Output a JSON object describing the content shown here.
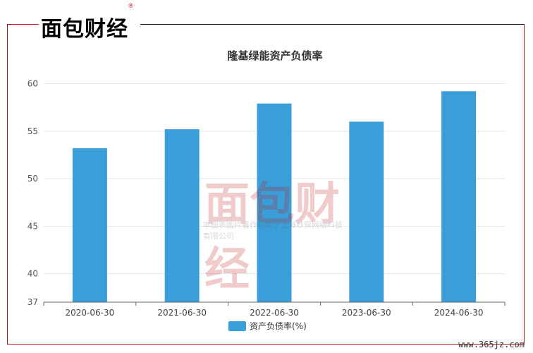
{
  "brand": {
    "logo_text": "面包财经",
    "registered": "®"
  },
  "watermark": {
    "logo_text": "面包财经",
    "copyright": "本图表图片著作权属于上海妙探网络科技有限公司",
    "registered": "®"
  },
  "site_url": "www.365jz.com",
  "colors": {
    "bar": "#3a9fd8",
    "frame_red": "#c0161d"
  },
  "chart_data": {
    "type": "bar",
    "title": "隆基绿能资产负债率",
    "categories": [
      "2020-06-30",
      "2021-06-30",
      "2022-06-30",
      "2023-06-30",
      "2024-06-30"
    ],
    "series": [
      {
        "name": "资产负债率(%)",
        "values": [
          53.2,
          55.2,
          57.9,
          56.0,
          59.2
        ]
      }
    ],
    "ylim": [
      37,
      61
    ],
    "yticks": [
      37,
      40,
      45,
      50,
      55,
      60
    ],
    "grid": true,
    "legend": "bottom"
  }
}
